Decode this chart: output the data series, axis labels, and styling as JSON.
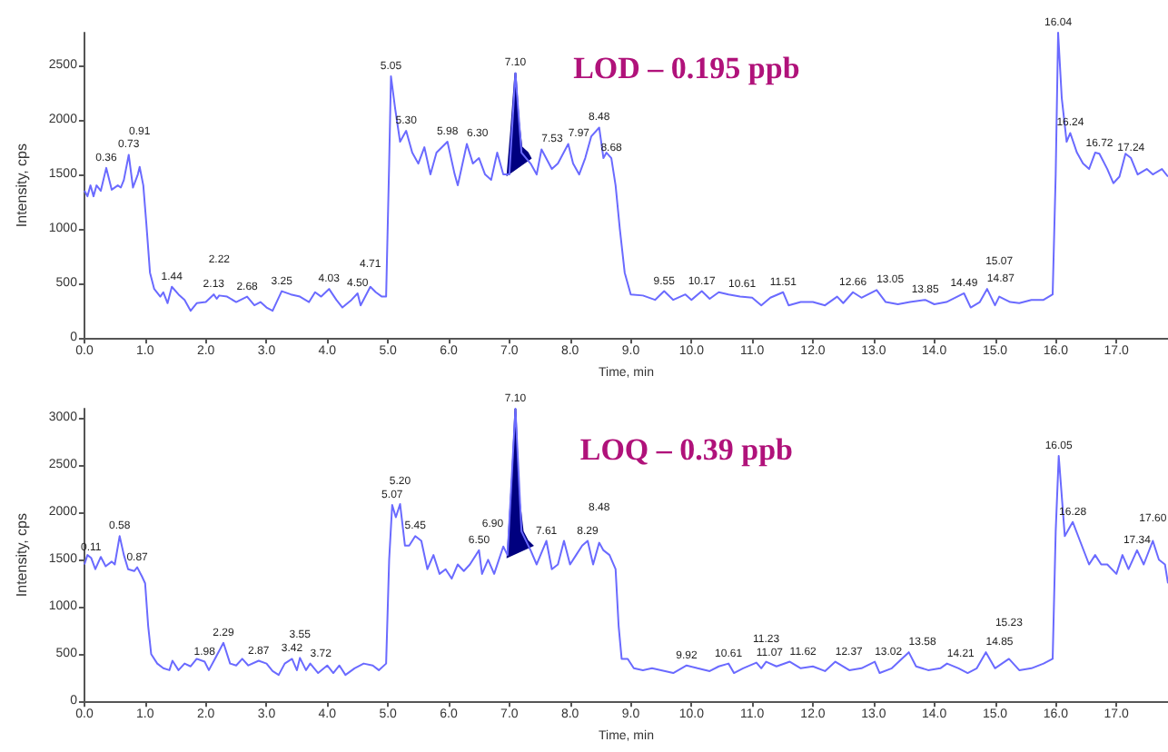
{
  "chart_data": [
    {
      "type": "line",
      "title": "LOD – 0.195 ppb",
      "xlabel": "Time, min",
      "ylabel": "Intensity, cps",
      "grid": false,
      "marker": "none",
      "xlim": [
        0,
        17.85
      ],
      "xticks": [
        {
          "value": 0,
          "label": "0.0"
        },
        {
          "value": 1,
          "label": "1.0"
        },
        {
          "value": 2,
          "label": "2.0"
        },
        {
          "value": 3,
          "label": "3.0"
        },
        {
          "value": 4,
          "label": "4.0"
        },
        {
          "value": 5,
          "label": "5.0"
        },
        {
          "value": 6,
          "label": "6.0"
        },
        {
          "value": 7,
          "label": "7.0"
        },
        {
          "value": 8,
          "label": "8.0"
        },
        {
          "value": 9,
          "label": "9.0"
        },
        {
          "value": 10,
          "label": "10.0"
        },
        {
          "value": 11,
          "label": "11.0"
        },
        {
          "value": 12,
          "label": "12.0"
        },
        {
          "value": 13,
          "label": "13.0"
        },
        {
          "value": 14,
          "label": "14.0"
        },
        {
          "value": 15,
          "label": "15.0"
        },
        {
          "value": 16,
          "label": "16.0"
        },
        {
          "value": 17,
          "label": "17.0"
        }
      ],
      "ylim": [
        0,
        2800
      ],
      "yticks": [
        0,
        500,
        1000,
        1500,
        2000,
        2500
      ],
      "series": [
        {
          "color": "#6a6aff",
          "x": [
            0,
            0.05,
            0.1,
            0.15,
            0.2,
            0.27,
            0.36,
            0.45,
            0.55,
            0.6,
            0.65,
            0.73,
            0.8,
            0.88,
            0.91,
            0.97,
            1.02,
            1.08,
            1.15,
            1.25,
            1.3,
            1.37,
            1.44,
            1.55,
            1.65,
            1.75,
            1.85,
            2.0,
            2.13,
            2.18,
            2.22,
            2.35,
            2.5,
            2.68,
            2.8,
            2.9,
            3.0,
            3.1,
            3.25,
            3.4,
            3.55,
            3.7,
            3.8,
            3.9,
            4.03,
            4.15,
            4.25,
            4.4,
            4.5,
            4.55,
            4.71,
            4.8,
            4.9,
            4.97,
            5.02,
            5.05,
            5.12,
            5.2,
            5.3,
            5.4,
            5.5,
            5.6,
            5.7,
            5.8,
            5.98,
            6.1,
            6.15,
            6.3,
            6.4,
            6.5,
            6.6,
            6.7,
            6.8,
            6.9,
            7.0,
            7.1,
            7.2,
            7.35,
            7.45,
            7.53,
            7.7,
            7.8,
            7.97,
            8.05,
            8.15,
            8.25,
            8.35,
            8.48,
            8.55,
            8.6,
            8.68,
            8.75,
            8.82,
            8.9,
            9.0,
            9.2,
            9.4,
            9.55,
            9.7,
            9.9,
            10.0,
            10.17,
            10.3,
            10.45,
            10.61,
            10.8,
            11.0,
            11.15,
            11.3,
            11.51,
            11.6,
            11.8,
            12.0,
            12.2,
            12.4,
            12.5,
            12.66,
            12.8,
            13.05,
            13.2,
            13.4,
            13.6,
            13.85,
            14.0,
            14.2,
            14.49,
            14.6,
            14.75,
            14.87,
            15.0,
            15.07,
            15.25,
            15.4,
            15.6,
            15.8,
            15.95,
            16.0,
            16.04,
            16.1,
            16.18,
            16.24,
            16.35,
            16.45,
            16.55,
            16.65,
            16.72,
            16.85,
            16.95,
            17.05,
            17.15,
            17.24,
            17.35,
            17.5,
            17.6,
            17.75,
            17.85
          ],
          "values": [
            1350,
            1300,
            1400,
            1300,
            1400,
            1350,
            1560,
            1360,
            1400,
            1380,
            1450,
            1680,
            1380,
            1500,
            1570,
            1400,
            1050,
            600,
            450,
            380,
            420,
            320,
            470,
            400,
            350,
            250,
            320,
            330,
            400,
            360,
            390,
            380,
            330,
            380,
            300,
            330,
            280,
            250,
            430,
            400,
            380,
            330,
            420,
            380,
            450,
            350,
            280,
            350,
            410,
            300,
            470,
            420,
            380,
            380,
            1600,
            2400,
            2100,
            1800,
            1900,
            1700,
            1600,
            1750,
            1500,
            1700,
            1800,
            1500,
            1400,
            1780,
            1600,
            1650,
            1500,
            1450,
            1700,
            1500,
            1500,
            2430,
            1700,
            1600,
            1500,
            1730,
            1550,
            1600,
            1780,
            1600,
            1500,
            1650,
            1850,
            1930,
            1650,
            1700,
            1650,
            1400,
            1000,
            600,
            400,
            390,
            350,
            430,
            350,
            400,
            350,
            430,
            360,
            420,
            400,
            380,
            370,
            300,
            370,
            420,
            300,
            330,
            330,
            300,
            380,
            320,
            420,
            370,
            440,
            330,
            310,
            330,
            350,
            310,
            330,
            410,
            280,
            330,
            450,
            300,
            380,
            330,
            320,
            350,
            350,
            400,
            1500,
            2800,
            2200,
            1800,
            1880,
            1700,
            1600,
            1550,
            1700,
            1690,
            1550,
            1420,
            1480,
            1690,
            1650,
            1500,
            1550,
            1500,
            1550,
            1480
          ]
        },
        {
          "type": "area",
          "color": "#00007f",
          "x": [
            6.97,
            7.03,
            7.1,
            7.15,
            7.2,
            7.3,
            7.35
          ],
          "values": [
            1500,
            1900,
            2430,
            2000,
            1750,
            1700,
            1650
          ]
        }
      ],
      "annotations": [
        {
          "text": "0.36",
          "x": 0.36,
          "y": 1560
        },
        {
          "text": "0.73",
          "x": 0.73,
          "y": 1680
        },
        {
          "text": "0.91",
          "x": 0.91,
          "y": 1570
        },
        {
          "text": "1.44",
          "x": 1.44,
          "y": 470
        },
        {
          "text": "2.13",
          "x": 2.13,
          "y": 400
        },
        {
          "text": "2.22",
          "x": 2.22,
          "y": 390
        },
        {
          "text": "2.68",
          "x": 2.68,
          "y": 380
        },
        {
          "text": "3.25",
          "x": 3.25,
          "y": 430
        },
        {
          "text": "4.03",
          "x": 4.03,
          "y": 450
        },
        {
          "text": "4.50",
          "x": 4.5,
          "y": 410
        },
        {
          "text": "4.71",
          "x": 4.71,
          "y": 470
        },
        {
          "text": "5.05",
          "x": 5.05,
          "y": 2400
        },
        {
          "text": "5.30",
          "x": 5.3,
          "y": 1900
        },
        {
          "text": "5.98",
          "x": 5.98,
          "y": 1800
        },
        {
          "text": "6.30",
          "x": 6.3,
          "y": 1780
        },
        {
          "text": "7.10",
          "x": 7.1,
          "y": 2430
        },
        {
          "text": "7.53",
          "x": 7.53,
          "y": 1730
        },
        {
          "text": "7.97",
          "x": 7.97,
          "y": 1780
        },
        {
          "text": "8.48",
          "x": 8.48,
          "y": 1930
        },
        {
          "text": "8.68",
          "x": 8.68,
          "y": 1650
        },
        {
          "text": "9.55",
          "x": 9.55,
          "y": 430
        },
        {
          "text": "10.17",
          "x": 10.17,
          "y": 430
        },
        {
          "text": "10.61",
          "x": 10.61,
          "y": 400
        },
        {
          "text": "11.51",
          "x": 11.51,
          "y": 420
        },
        {
          "text": "12.66",
          "x": 12.66,
          "y": 420
        },
        {
          "text": "13.05",
          "x": 13.05,
          "y": 440
        },
        {
          "text": "13.85",
          "x": 13.85,
          "y": 350
        },
        {
          "text": "14.49",
          "x": 14.49,
          "y": 410
        },
        {
          "text": "14.87",
          "x": 14.87,
          "y": 450
        },
        {
          "text": "15.07",
          "x": 15.07,
          "y": 380
        },
        {
          "text": "16.04",
          "x": 16.04,
          "y": 2800
        },
        {
          "text": "16.24",
          "x": 16.24,
          "y": 1880
        },
        {
          "text": "16.72",
          "x": 16.72,
          "y": 1690
        },
        {
          "text": "17.24",
          "x": 17.24,
          "y": 1650
        }
      ]
    },
    {
      "type": "line",
      "title": "LOQ – 0.39 ppb",
      "xlabel": "Time, min",
      "ylabel": "Intensity, cps",
      "grid": false,
      "marker": "none",
      "xlim": [
        0,
        17.85
      ],
      "xticks": [
        {
          "value": 0,
          "label": "0.0"
        },
        {
          "value": 1,
          "label": "1.0"
        },
        {
          "value": 2,
          "label": "2.0"
        },
        {
          "value": 3,
          "label": "3.0"
        },
        {
          "value": 4,
          "label": "4.0"
        },
        {
          "value": 5,
          "label": "5.0"
        },
        {
          "value": 6,
          "label": "6.0"
        },
        {
          "value": 7,
          "label": "7.0"
        },
        {
          "value": 8,
          "label": "8.0"
        },
        {
          "value": 9,
          "label": "9.0"
        },
        {
          "value": 10,
          "label": "10.0"
        },
        {
          "value": 11,
          "label": "11.0"
        },
        {
          "value": 12,
          "label": "12.0"
        },
        {
          "value": 13,
          "label": "13.0"
        },
        {
          "value": 14,
          "label": "14.0"
        },
        {
          "value": 15,
          "label": "15.0"
        },
        {
          "value": 16,
          "label": "16.0"
        },
        {
          "value": 17,
          "label": "17.0"
        }
      ],
      "ylim": [
        0,
        3100
      ],
      "yticks": [
        0,
        500,
        1000,
        1500,
        2000,
        2500,
        3000
      ],
      "series": [
        {
          "color": "#6a6aff",
          "x": [
            0,
            0.05,
            0.11,
            0.18,
            0.27,
            0.35,
            0.45,
            0.5,
            0.58,
            0.65,
            0.72,
            0.82,
            0.87,
            0.95,
            1.0,
            1.05,
            1.1,
            1.2,
            1.3,
            1.4,
            1.45,
            1.55,
            1.65,
            1.75,
            1.85,
            1.98,
            2.05,
            2.15,
            2.29,
            2.4,
            2.5,
            2.6,
            2.7,
            2.87,
            3.0,
            3.1,
            3.2,
            3.3,
            3.42,
            3.5,
            3.55,
            3.65,
            3.72,
            3.85,
            4.0,
            4.1,
            4.2,
            4.3,
            4.45,
            4.6,
            4.75,
            4.85,
            4.97,
            5.02,
            5.07,
            5.13,
            5.2,
            5.28,
            5.35,
            5.45,
            5.55,
            5.65,
            5.75,
            5.85,
            5.95,
            6.05,
            6.15,
            6.25,
            6.35,
            6.5,
            6.55,
            6.65,
            6.75,
            6.9,
            6.97,
            7.1,
            7.2,
            7.35,
            7.45,
            7.61,
            7.7,
            7.8,
            7.9,
            8.0,
            8.1,
            8.2,
            8.29,
            8.38,
            8.48,
            8.55,
            8.65,
            8.75,
            8.8,
            8.85,
            8.95,
            9.05,
            9.2,
            9.35,
            9.5,
            9.7,
            9.92,
            10.1,
            10.3,
            10.45,
            10.61,
            10.7,
            10.85,
            11.07,
            11.15,
            11.23,
            11.4,
            11.62,
            11.8,
            12.0,
            12.2,
            12.37,
            12.6,
            12.8,
            13.02,
            13.1,
            13.3,
            13.58,
            13.7,
            13.9,
            14.1,
            14.21,
            14.4,
            14.55,
            14.7,
            14.85,
            15.0,
            15.23,
            15.4,
            15.6,
            15.8,
            15.95,
            16.0,
            16.05,
            16.15,
            16.28,
            16.4,
            16.55,
            16.65,
            16.75,
            16.85,
            17.0,
            17.1,
            17.2,
            17.34,
            17.45,
            17.6,
            17.7,
            17.8,
            17.85
          ],
          "values": [
            1450,
            1550,
            1520,
            1400,
            1530,
            1430,
            1480,
            1450,
            1750,
            1550,
            1400,
            1380,
            1420,
            1320,
            1250,
            800,
            500,
            400,
            350,
            330,
            430,
            330,
            400,
            370,
            450,
            420,
            330,
            450,
            620,
            400,
            380,
            450,
            380,
            430,
            400,
            320,
            280,
            400,
            450,
            330,
            460,
            330,
            400,
            300,
            380,
            300,
            380,
            280,
            350,
            400,
            380,
            330,
            400,
            1500,
            2080,
            1950,
            2090,
            1650,
            1650,
            1750,
            1700,
            1400,
            1550,
            1350,
            1400,
            1300,
            1450,
            1380,
            1450,
            1600,
            1350,
            1500,
            1350,
            1640,
            1550,
            3100,
            1800,
            1600,
            1450,
            1700,
            1400,
            1450,
            1700,
            1450,
            1550,
            1650,
            1700,
            1450,
            1680,
            1600,
            1550,
            1400,
            800,
            450,
            450,
            350,
            330,
            350,
            330,
            300,
            380,
            350,
            320,
            370,
            400,
            300,
            350,
            410,
            350,
            420,
            370,
            420,
            350,
            370,
            320,
            420,
            330,
            350,
            420,
            300,
            350,
            520,
            370,
            330,
            350,
            400,
            350,
            300,
            350,
            520,
            350,
            450,
            330,
            350,
            400,
            450,
            1800,
            2600,
            1750,
            1900,
            1700,
            1450,
            1550,
            1450,
            1450,
            1350,
            1550,
            1400,
            1600,
            1450,
            1700,
            1500,
            1450,
            1250
          ]
        },
        {
          "type": "area",
          "color": "#00007f",
          "x": [
            6.97,
            7.05,
            7.1,
            7.15,
            7.22,
            7.3,
            7.38
          ],
          "values": [
            1530,
            2400,
            3100,
            2200,
            1800,
            1700,
            1650
          ]
        }
      ],
      "annotations": [
        {
          "text": "0.11",
          "x": 0.11,
          "y": 1520
        },
        {
          "text": "0.58",
          "x": 0.58,
          "y": 1750
        },
        {
          "text": "0.87",
          "x": 0.87,
          "y": 1420
        },
        {
          "text": "1.98",
          "x": 1.98,
          "y": 420
        },
        {
          "text": "2.29",
          "x": 2.29,
          "y": 620
        },
        {
          "text": "2.87",
          "x": 2.87,
          "y": 430
        },
        {
          "text": "3.42",
          "x": 3.42,
          "y": 450
        },
        {
          "text": "3.55",
          "x": 3.55,
          "y": 460
        },
        {
          "text": "3.72",
          "x": 3.72,
          "y": 400
        },
        {
          "text": "5.07",
          "x": 5.07,
          "y": 2080
        },
        {
          "text": "5.20",
          "x": 5.2,
          "y": 2090
        },
        {
          "text": "5.45",
          "x": 5.45,
          "y": 1750
        },
        {
          "text": "6.50",
          "x": 6.5,
          "y": 1600
        },
        {
          "text": "6.90",
          "x": 6.9,
          "y": 1640
        },
        {
          "text": "7.10",
          "x": 7.1,
          "y": 3100
        },
        {
          "text": "7.61",
          "x": 7.61,
          "y": 1700
        },
        {
          "text": "8.29",
          "x": 8.29,
          "y": 1700
        },
        {
          "text": "8.48",
          "x": 8.48,
          "y": 1680
        },
        {
          "text": "9.92",
          "x": 9.92,
          "y": 380
        },
        {
          "text": "10.61",
          "x": 10.61,
          "y": 400
        },
        {
          "text": "11.07",
          "x": 11.07,
          "y": 410
        },
        {
          "text": "11.23",
          "x": 11.23,
          "y": 420
        },
        {
          "text": "11.62",
          "x": 11.62,
          "y": 420
        },
        {
          "text": "12.37",
          "x": 12.37,
          "y": 420
        },
        {
          "text": "13.02",
          "x": 13.02,
          "y": 420
        },
        {
          "text": "13.58",
          "x": 13.58,
          "y": 520
        },
        {
          "text": "14.21",
          "x": 14.21,
          "y": 400
        },
        {
          "text": "14.85",
          "x": 14.85,
          "y": 520
        },
        {
          "text": "15.23",
          "x": 15.23,
          "y": 450
        },
        {
          "text": "16.05",
          "x": 16.05,
          "y": 2600
        },
        {
          "text": "16.28",
          "x": 16.28,
          "y": 1900
        },
        {
          "text": "17.34",
          "x": 17.34,
          "y": 1600
        },
        {
          "text": "17.60",
          "x": 17.6,
          "y": 1700
        }
      ]
    }
  ]
}
